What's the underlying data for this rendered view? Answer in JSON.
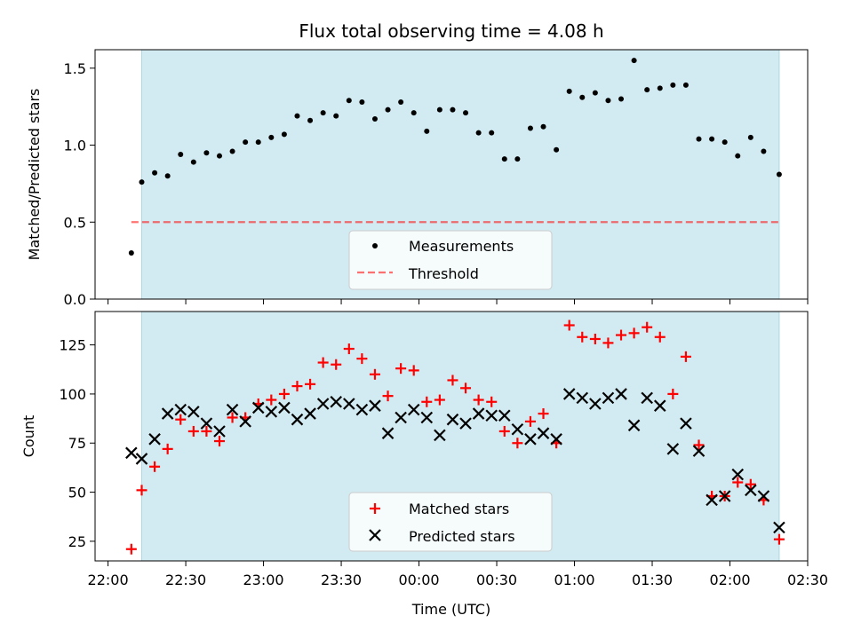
{
  "chart_data": [
    {
      "type": "scatter",
      "title": "Flux total observing time = 4.08 h",
      "xlabel": "",
      "ylabel": "Matched/Predicted stars",
      "ylim": [
        0,
        1.62
      ],
      "yticks": [
        0.0,
        0.5,
        1.0,
        1.5
      ],
      "ytick_labels": [
        "0.0",
        "0.5",
        "1.0",
        "1.5"
      ],
      "xlim_minutes": [
        1315,
        1590
      ],
      "shaded_span": [
        "22:13",
        "02:19"
      ],
      "shade_color": "#add8e6",
      "threshold": {
        "name": "Threshold",
        "value": 0.5,
        "x_start": "22:09",
        "x_end": "02:19",
        "color": "#ff0000",
        "style": "dashed"
      },
      "legend": {
        "placement": "lower-center",
        "entries": [
          "Measurements",
          "Threshold"
        ]
      },
      "series": [
        {
          "name": "Measurements",
          "color": "#000000",
          "marker": "dot",
          "x": [
            "22:09",
            "22:13",
            "22:18",
            "22:23",
            "22:28",
            "22:33",
            "22:38",
            "22:43",
            "22:48",
            "22:53",
            "22:58",
            "23:03",
            "23:08",
            "23:13",
            "23:18",
            "23:23",
            "23:28",
            "23:33",
            "23:38",
            "23:43",
            "23:48",
            "23:53",
            "23:58",
            "00:03",
            "00:08",
            "00:13",
            "00:18",
            "00:23",
            "00:28",
            "00:33",
            "00:38",
            "00:43",
            "00:48",
            "00:53",
            "00:58",
            "01:03",
            "01:08",
            "01:13",
            "01:18",
            "01:23",
            "01:28",
            "01:33",
            "01:38",
            "01:43",
            "01:48",
            "01:53",
            "01:58",
            "02:03",
            "02:08",
            "02:13",
            "02:19"
          ],
          "y": [
            0.3,
            0.76,
            0.82,
            0.8,
            0.94,
            0.89,
            0.95,
            0.93,
            0.96,
            1.02,
            1.02,
            1.05,
            1.07,
            1.19,
            1.16,
            1.21,
            1.19,
            1.29,
            1.28,
            1.17,
            1.23,
            1.28,
            1.21,
            1.09,
            1.23,
            1.23,
            1.21,
            1.08,
            1.08,
            0.91,
            0.91,
            1.11,
            1.12,
            0.97,
            1.35,
            1.31,
            1.34,
            1.29,
            1.3,
            1.55,
            1.36,
            1.37,
            1.39,
            1.39,
            1.04,
            1.04,
            1.02,
            0.93,
            1.05,
            0.96,
            0.81
          ]
        }
      ]
    },
    {
      "type": "scatter",
      "title": "",
      "xlabel": "Time (UTC)",
      "ylabel": "Count",
      "ylim": [
        15,
        142
      ],
      "yticks": [
        25,
        50,
        75,
        100,
        125
      ],
      "ytick_labels": [
        "25",
        "50",
        "75",
        "100",
        "125"
      ],
      "xlim_minutes": [
        1315,
        1590
      ],
      "xticks": [
        "22:00",
        "22:30",
        "23:00",
        "23:30",
        "00:00",
        "00:30",
        "01:00",
        "01:30",
        "02:00",
        "02:30"
      ],
      "shaded_span": [
        "22:13",
        "02:19"
      ],
      "shade_color": "#add8e6",
      "legend": {
        "placement": "lower-center",
        "entries": [
          "Matched stars",
          "Predicted stars"
        ]
      },
      "series": [
        {
          "name": "Matched stars",
          "color": "#ff0000",
          "marker": "plus",
          "x": [
            "22:09",
            "22:13",
            "22:18",
            "22:23",
            "22:28",
            "22:33",
            "22:38",
            "22:43",
            "22:48",
            "22:53",
            "22:58",
            "23:03",
            "23:08",
            "23:13",
            "23:18",
            "23:23",
            "23:28",
            "23:33",
            "23:38",
            "23:43",
            "23:48",
            "23:53",
            "23:58",
            "00:03",
            "00:08",
            "00:13",
            "00:18",
            "00:23",
            "00:28",
            "00:33",
            "00:38",
            "00:43",
            "00:48",
            "00:53",
            "00:58",
            "01:03",
            "01:08",
            "01:13",
            "01:18",
            "01:23",
            "01:28",
            "01:33",
            "01:38",
            "01:43",
            "01:48",
            "01:53",
            "01:58",
            "02:03",
            "02:08",
            "02:13",
            "02:19"
          ],
          "y": [
            21,
            51,
            63,
            72,
            87,
            81,
            81,
            76,
            88,
            88,
            95,
            97,
            100,
            104,
            105,
            116,
            115,
            123,
            118,
            110,
            99,
            113,
            112,
            96,
            97,
            107,
            103,
            97,
            96,
            81,
            75,
            86,
            90,
            75,
            135,
            129,
            128,
            126,
            130,
            131,
            134,
            129,
            100,
            119,
            74,
            48,
            48,
            55,
            54,
            46,
            26
          ]
        },
        {
          "name": "Predicted stars",
          "color": "#000000",
          "marker": "x",
          "x": [
            "22:09",
            "22:13",
            "22:18",
            "22:23",
            "22:28",
            "22:33",
            "22:38",
            "22:43",
            "22:48",
            "22:53",
            "22:58",
            "23:03",
            "23:08",
            "23:13",
            "23:18",
            "23:23",
            "23:28",
            "23:33",
            "23:38",
            "23:43",
            "23:48",
            "23:53",
            "23:58",
            "00:03",
            "00:08",
            "00:13",
            "00:18",
            "00:23",
            "00:28",
            "00:33",
            "00:38",
            "00:43",
            "00:48",
            "00:53",
            "00:58",
            "01:03",
            "01:08",
            "01:13",
            "01:18",
            "01:23",
            "01:28",
            "01:33",
            "01:38",
            "01:43",
            "01:48",
            "01:53",
            "01:58",
            "02:03",
            "02:08",
            "02:13",
            "02:19"
          ],
          "y": [
            70,
            67,
            77,
            90,
            92,
            91,
            85,
            81,
            92,
            86,
            93,
            91,
            93,
            87,
            90,
            95,
            96,
            95,
            92,
            94,
            80,
            88,
            92,
            88,
            79,
            87,
            85,
            90,
            89,
            89,
            82,
            77,
            80,
            77,
            100,
            98,
            95,
            98,
            100,
            84,
            98,
            94,
            72,
            85,
            71,
            46,
            48,
            59,
            51,
            48,
            32
          ]
        }
      ]
    }
  ]
}
